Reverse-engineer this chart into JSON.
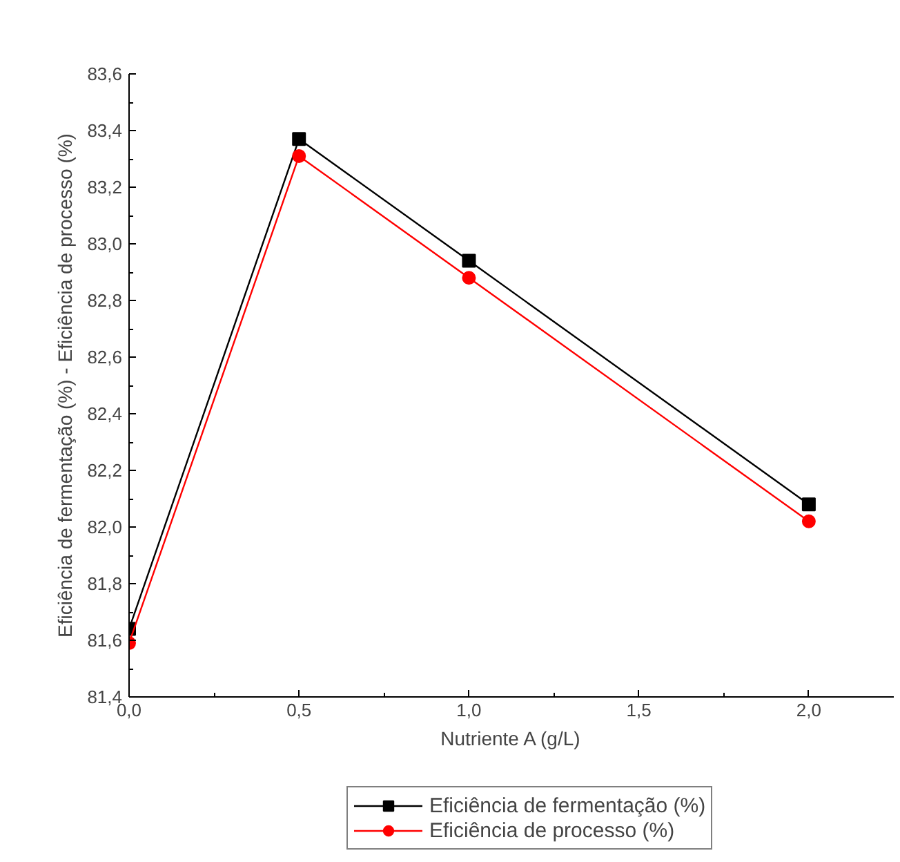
{
  "chart_data": {
    "type": "line",
    "xlabel": "Nutriente A (g/L)",
    "ylabel": "Eficiência de fermentação (%) - Eficiência de processo (%)",
    "x": [
      0.0,
      0.5,
      1.0,
      2.0
    ],
    "series": [
      {
        "name": "Eficiência de fermentação (%)",
        "color": "#000000",
        "marker": "square",
        "values": [
          81.64,
          83.37,
          82.94,
          82.08
        ]
      },
      {
        "name": "Eficiência de processo (%)",
        "color": "#ff0000",
        "marker": "circle",
        "values": [
          81.59,
          83.31,
          82.88,
          82.02
        ]
      }
    ],
    "xlim": [
      0,
      2.25
    ],
    "xticks": [
      {
        "value": 0,
        "label": "0,0"
      },
      {
        "value": 0.5,
        "label": "0,5"
      },
      {
        "value": 1.0,
        "label": "1,0"
      },
      {
        "value": 1.5,
        "label": "1,5"
      },
      {
        "value": 2.0,
        "label": "2,0"
      }
    ],
    "ylim": [
      81.4,
      83.6
    ],
    "yticks": [
      {
        "value": 81.4,
        "label": "81,4"
      },
      {
        "value": 81.6,
        "label": "81,6"
      },
      {
        "value": 81.8,
        "label": "81,8"
      },
      {
        "value": 82.0,
        "label": "82,0"
      },
      {
        "value": 82.2,
        "label": "82,2"
      },
      {
        "value": 82.4,
        "label": "82,4"
      },
      {
        "value": 82.6,
        "label": "82,6"
      },
      {
        "value": 82.8,
        "label": "82,8"
      },
      {
        "value": 83.0,
        "label": "83,0"
      },
      {
        "value": 83.2,
        "label": "83,2"
      },
      {
        "value": 83.4,
        "label": "83,4"
      },
      {
        "value": 83.6,
        "label": "83,6"
      }
    ],
    "grid": false,
    "legend": "bottom",
    "line_style": "solid"
  }
}
